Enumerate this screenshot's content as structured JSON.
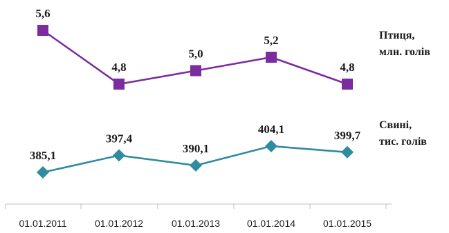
{
  "chart_data": {
    "type": "line",
    "categories": [
      "01.01.2011",
      "01.01.2012",
      "01.01.2013",
      "01.01.2014",
      "01.01.2015"
    ],
    "series": [
      {
        "name_line1": "Птиця,",
        "name_line2": "млн. голів",
        "values": [
          5.6,
          4.8,
          5.0,
          5.2,
          4.8
        ],
        "labels": [
          "5,6",
          "4,8",
          "5,0",
          "5,2",
          "4,8"
        ],
        "color": "#7b2c9e",
        "marker": "square"
      },
      {
        "name_line1": "Свині,",
        "name_line2": "тис. голів",
        "values": [
          385.1,
          397.4,
          390.1,
          404.1,
          399.7
        ],
        "labels": [
          "385,1",
          "397,4",
          "390,1",
          "404,1",
          "399,7"
        ],
        "color": "#2e8ba0",
        "marker": "diamond"
      }
    ],
    "grid": false,
    "legend_placement": "right"
  }
}
